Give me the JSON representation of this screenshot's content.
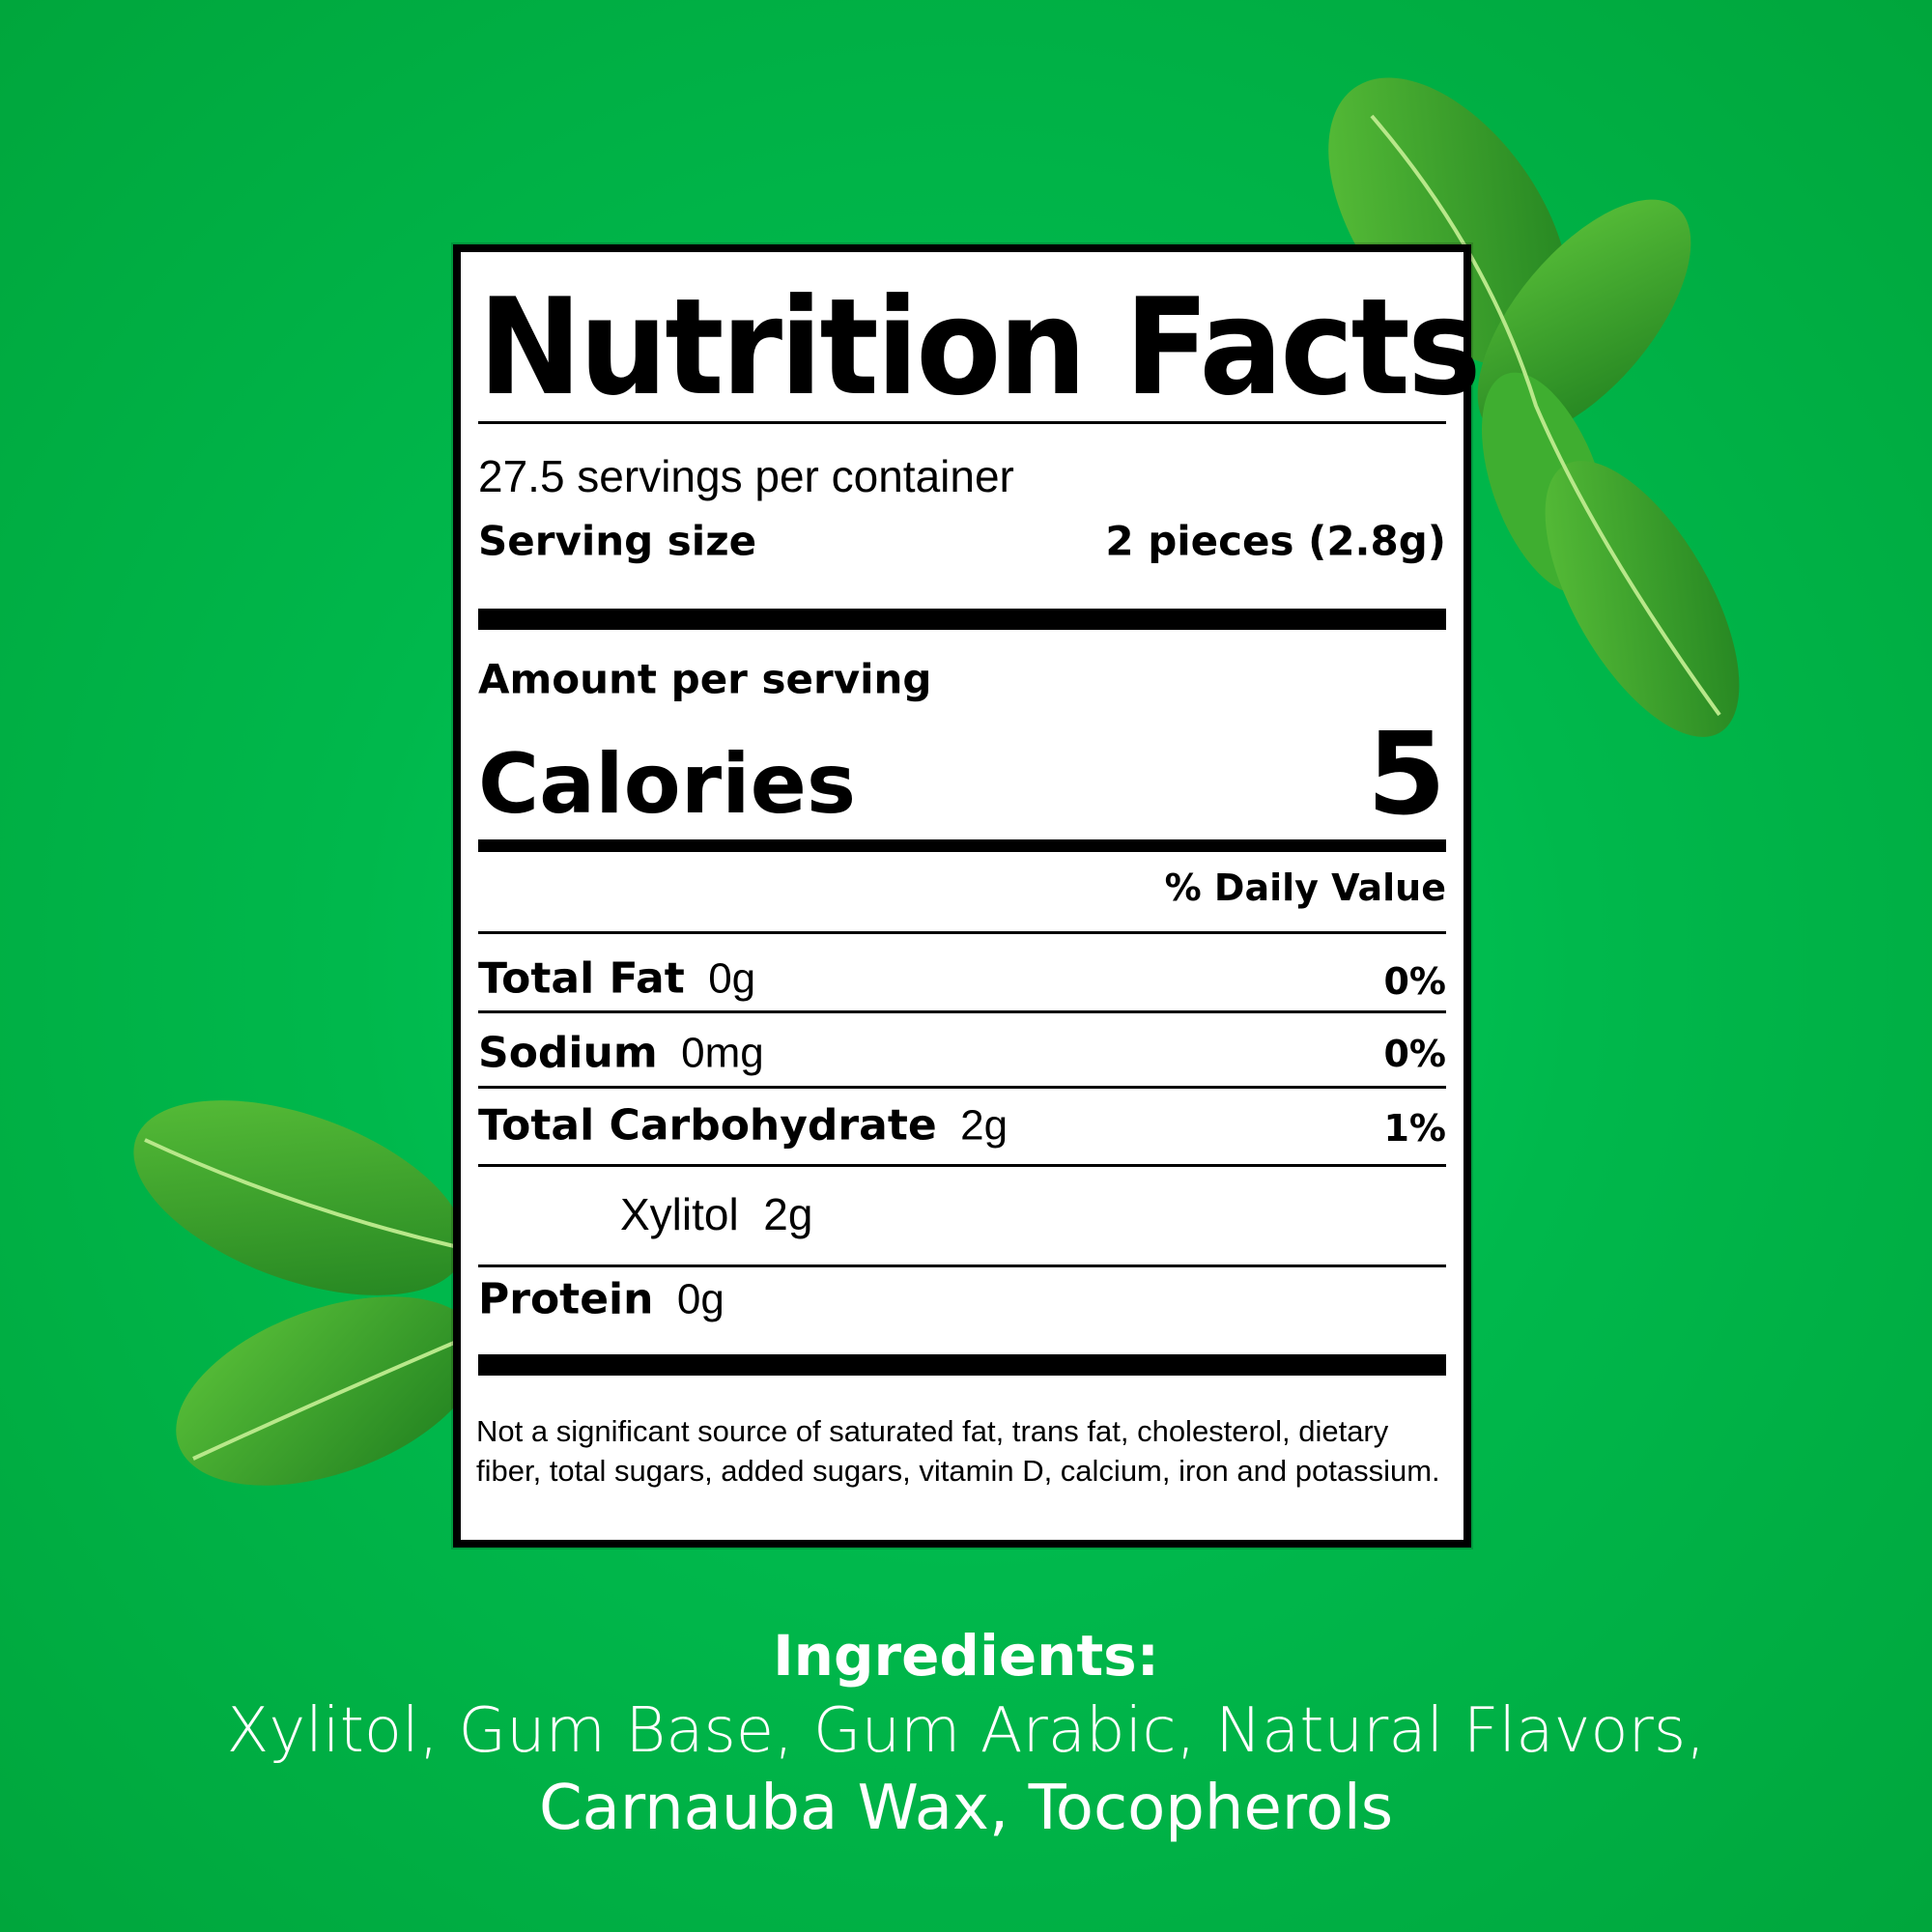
{
  "colors": {
    "background": "#00b84c",
    "leaf": "#2f9a2a",
    "label_bg": "#ffffff",
    "text": "#000000"
  },
  "label": {
    "title": "Nutrition Facts",
    "servings_per_container": "27.5 servings per container",
    "serving_size_label": "Serving size",
    "serving_size_value": "2 pieces (2.8g)",
    "amount_per_serving": "Amount per serving",
    "calories_label": "Calories",
    "calories_value": "5",
    "daily_value_header": "% Daily Value",
    "nutrients": [
      {
        "name": "Total Fat",
        "amount": "0g",
        "dv": "0%"
      },
      {
        "name": "Sodium",
        "amount": "0mg",
        "dv": "0%"
      },
      {
        "name": "Total Carbohydrate",
        "amount": "2g",
        "dv": "1%"
      },
      {
        "name": "Xylitol",
        "amount": "2g"
      },
      {
        "name": "Protein",
        "amount": "0g"
      }
    ],
    "footnote": "Not a significant source of saturated fat, trans fat, cholesterol, dietary fiber, total sugars, added sugars, vitamin D, calcium, iron and potassium."
  },
  "ingredients": {
    "title": "Ingredients:",
    "line1": "Xylitol, Gum Base, Gum Arabic, Natural Flavors,",
    "line2": "Carnauba Wax, Tocopherols"
  }
}
